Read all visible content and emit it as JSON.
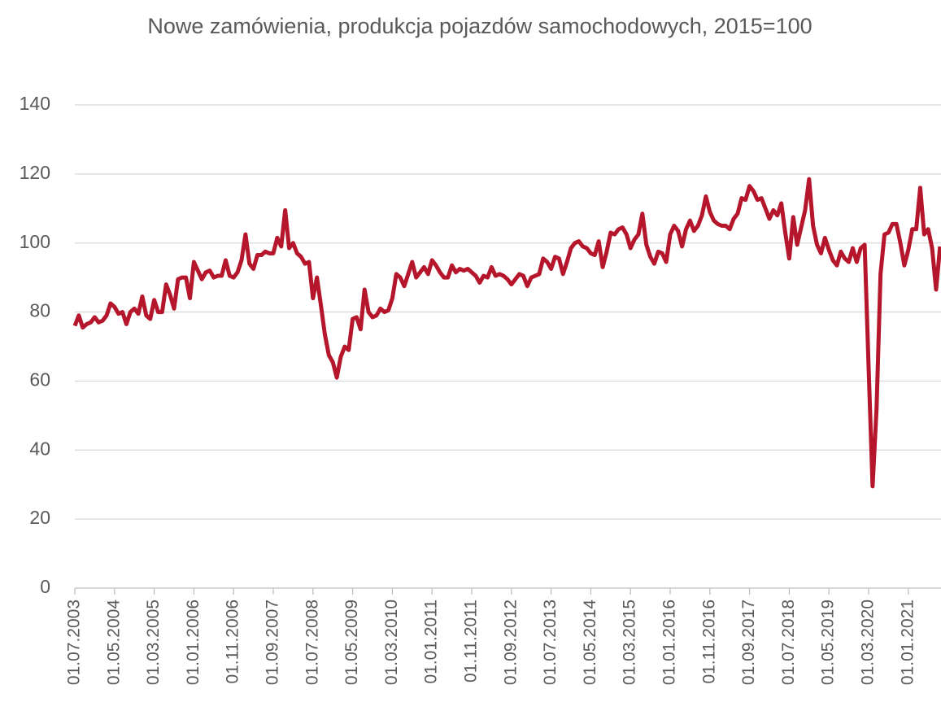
{
  "chart_data": {
    "type": "line",
    "title": "Nowe zamówienia, produkcja pojazdów samochodowych, 2015=100",
    "categories": [
      "01.07.2003",
      null,
      null,
      null,
      null,
      null,
      null,
      null,
      null,
      null,
      "01.05.2004",
      null,
      null,
      null,
      null,
      null,
      null,
      null,
      null,
      null,
      "01.03.2005",
      null,
      null,
      null,
      null,
      null,
      null,
      null,
      null,
      null,
      "01.01.2006",
      null,
      null,
      null,
      null,
      null,
      null,
      null,
      null,
      null,
      "01.11.2006",
      null,
      null,
      null,
      null,
      null,
      null,
      null,
      null,
      null,
      "01.09.2007",
      null,
      null,
      null,
      null,
      null,
      null,
      null,
      null,
      null,
      "01.07.2008",
      null,
      null,
      null,
      null,
      null,
      null,
      null,
      null,
      null,
      "01.05.2009",
      null,
      null,
      null,
      null,
      null,
      null,
      null,
      null,
      null,
      "01.03.2010",
      null,
      null,
      null,
      null,
      null,
      null,
      null,
      null,
      null,
      "01.01.2011",
      null,
      null,
      null,
      null,
      null,
      null,
      null,
      null,
      null,
      "01.11.2011",
      null,
      null,
      null,
      null,
      null,
      null,
      null,
      null,
      null,
      "01.09.2012",
      null,
      null,
      null,
      null,
      null,
      null,
      null,
      null,
      null,
      "01.07.2013",
      null,
      null,
      null,
      null,
      null,
      null,
      null,
      null,
      null,
      "01.05.2014",
      null,
      null,
      null,
      null,
      null,
      null,
      null,
      null,
      null,
      "01.03.2015",
      null,
      null,
      null,
      null,
      null,
      null,
      null,
      null,
      null,
      "01.01.2016",
      null,
      null,
      null,
      null,
      null,
      null,
      null,
      null,
      null,
      "01.11.2016",
      null,
      null,
      null,
      null,
      null,
      null,
      null,
      null,
      null,
      "01.09.2017",
      null,
      null,
      null,
      null,
      null,
      null,
      null,
      null,
      null,
      "01.07.2018",
      null,
      null,
      null,
      null,
      null,
      null,
      null,
      null,
      null,
      "01.05.2019",
      null,
      null,
      null,
      null,
      null,
      null,
      null,
      null,
      null,
      "01.03.2020",
      null,
      null,
      null,
      null,
      null,
      null,
      null,
      null,
      null,
      "01.01.2021",
      null,
      null,
      null,
      null,
      null,
      null,
      null,
      null
    ],
    "values": [
      76,
      79,
      75.5,
      76.5,
      77,
      78.5,
      77,
      77.5,
      79,
      82.5,
      81.5,
      79.5,
      80,
      76.5,
      80,
      81,
      79.5,
      84.5,
      79,
      78,
      83.5,
      80,
      80,
      88,
      85,
      81,
      89.5,
      90,
      90,
      84,
      94.5,
      92,
      89.5,
      91.5,
      92,
      90,
      90.5,
      90.5,
      95,
      90.5,
      90,
      91.5,
      95,
      102.5,
      94,
      92.5,
      96.5,
      96.5,
      97.5,
      97,
      97,
      101.5,
      99,
      109.5,
      98.5,
      100,
      97,
      96,
      94,
      94.5,
      84,
      90,
      82,
      73.5,
      67.5,
      65.5,
      61,
      67,
      70,
      69,
      78,
      78.5,
      75,
      86.5,
      80,
      78.5,
      79,
      81,
      80,
      80.5,
      84,
      91,
      90,
      87.5,
      91,
      94.5,
      90,
      91.5,
      93,
      91,
      95,
      93.5,
      91.5,
      90,
      90,
      93.5,
      91.5,
      92.5,
      92,
      92.5,
      91.5,
      90.5,
      88.5,
      90.5,
      90,
      93,
      90.5,
      91,
      90.5,
      89.5,
      88,
      89.5,
      91,
      90.5,
      87.5,
      90,
      90.5,
      91,
      95.5,
      94.5,
      92.5,
      96,
      95.5,
      91,
      94.5,
      98.5,
      100,
      100.5,
      99,
      98.5,
      97,
      96.5,
      100.5,
      93,
      97.5,
      103,
      102.5,
      104,
      104.5,
      102.5,
      98.5,
      101,
      102.5,
      108.5,
      99.5,
      96,
      94,
      97.5,
      97,
      94.5,
      102.5,
      105,
      103.5,
      99,
      104,
      106.5,
      103.5,
      105,
      108,
      113.5,
      109,
      106.5,
      105.5,
      105,
      105,
      104,
      107,
      108.5,
      113,
      112.5,
      116.5,
      115,
      112.5,
      113,
      110,
      107,
      109.5,
      108,
      111.5,
      103,
      95.5,
      107.5,
      99.5,
      104.5,
      109.5,
      118.5,
      105,
      99.5,
      97,
      101.5,
      98,
      95,
      93.5,
      97.5,
      95.5,
      94.5,
      98.5,
      94.5,
      98.5,
      99.5,
      64,
      29.5,
      52,
      91,
      102.5,
      103,
      105.5,
      105.5,
      100,
      93.5,
      98,
      104,
      104,
      116,
      102.5,
      104,
      98.5,
      86.5,
      99
    ],
    "color": "#b5162b",
    "ylim": [
      0,
      140
    ],
    "yticks": [
      0,
      20,
      40,
      60,
      80,
      100,
      120,
      140
    ],
    "grid": true
  }
}
